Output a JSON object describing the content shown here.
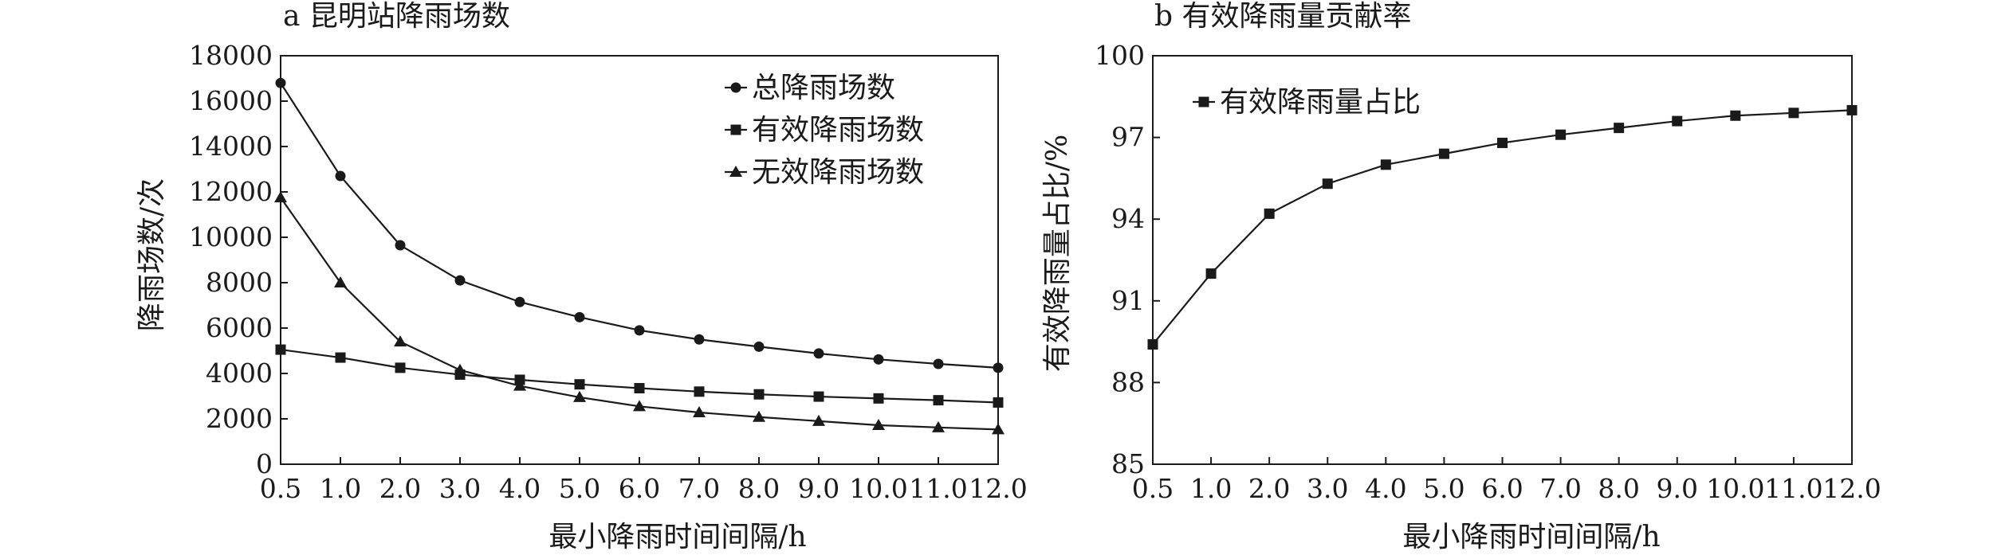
{
  "chart_data": [
    {
      "type": "line",
      "title": "a 昆明站降雨场数",
      "xlabel": "最小降雨时间间隔/h",
      "ylabel": "降雨场数/次",
      "categories": [
        "0.5",
        "1.0",
        "2.0",
        "3.0",
        "4.0",
        "5.0",
        "6.0",
        "7.0",
        "8.0",
        "9.0",
        "10.0",
        "11.0",
        "12.0"
      ],
      "ylim": [
        0,
        18000
      ],
      "yticks": [
        "0",
        "2000",
        "4000",
        "6000",
        "8000",
        "10000",
        "12000",
        "14000",
        "16000",
        "18000"
      ],
      "grid": false,
      "legend_position": "top-right",
      "series": [
        {
          "name": "总降雨场数",
          "marker": "circle",
          "values": [
            16800,
            12700,
            9650,
            8100,
            7150,
            6480,
            5900,
            5500,
            5180,
            4880,
            4620,
            4420,
            4250
          ]
        },
        {
          "name": "有效降雨场数",
          "marker": "square",
          "values": [
            5050,
            4700,
            4250,
            3950,
            3720,
            3520,
            3350,
            3200,
            3080,
            2980,
            2900,
            2820,
            2720
          ]
        },
        {
          "name": "无效降雨场数",
          "marker": "triangle",
          "values": [
            11750,
            8000,
            5400,
            4150,
            3450,
            2950,
            2550,
            2280,
            2080,
            1900,
            1720,
            1620,
            1530
          ]
        }
      ]
    },
    {
      "type": "line",
      "title": "b 有效降雨量贡献率",
      "xlabel": "最小降雨时间间隔/h",
      "ylabel": "有效降雨量占比/%",
      "categories": [
        "0.5",
        "1.0",
        "2.0",
        "3.0",
        "4.0",
        "5.0",
        "6.0",
        "7.0",
        "8.0",
        "9.0",
        "10.0",
        "11.0",
        "12.0"
      ],
      "ylim": [
        85,
        100
      ],
      "yticks": [
        "85",
        "88",
        "91",
        "94",
        "97",
        "100"
      ],
      "grid": false,
      "legend_position": "top-left",
      "series": [
        {
          "name": "有效降雨量占比",
          "marker": "square",
          "values": [
            89.4,
            92.0,
            94.2,
            95.3,
            96.0,
            96.4,
            96.8,
            97.1,
            97.35,
            97.6,
            97.8,
            97.9,
            98.0
          ]
        }
      ]
    }
  ]
}
